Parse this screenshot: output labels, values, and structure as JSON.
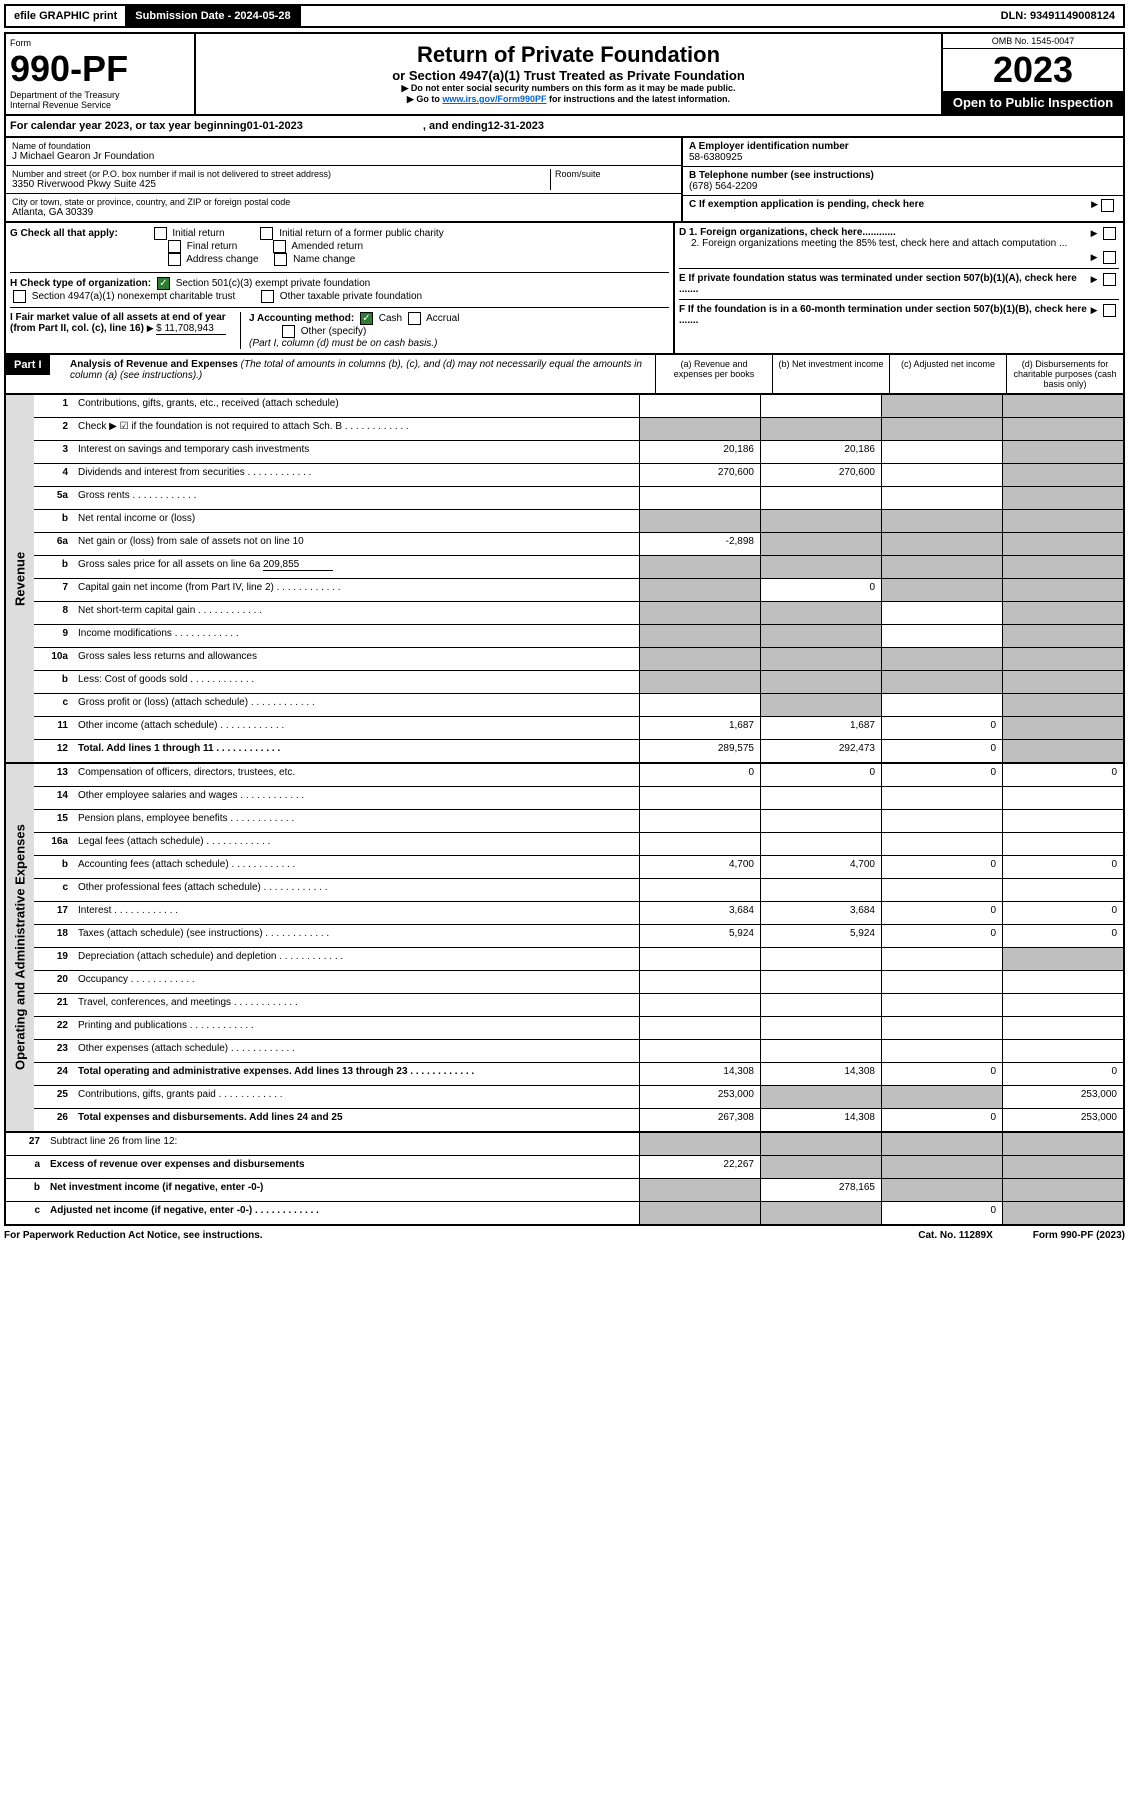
{
  "header": {
    "efile": "efile GRAPHIC print",
    "submission": "Submission Date - 2024-05-28",
    "dln": "DLN: 93491149008124",
    "omb": "OMB No. 1545-0047"
  },
  "form": {
    "label": "Form",
    "number": "990-PF",
    "dept": "Department of the Treasury",
    "irs": "Internal Revenue Service",
    "title": "Return of Private Foundation",
    "subtitle": "or Section 4947(a)(1) Trust Treated as Private Foundation",
    "note1": "▶ Do not enter social security numbers on this form as it may be made public.",
    "note2_pre": "▶ Go to ",
    "note2_link": "www.irs.gov/Form990PF",
    "note2_post": " for instructions and the latest information.",
    "year": "2023",
    "open": "Open to Public Inspection"
  },
  "calyear": {
    "pre": "For calendar year 2023, or tax year beginning ",
    "begin": "01-01-2023",
    "mid": ", and ending ",
    "end": "12-31-2023"
  },
  "entity": {
    "name_lbl": "Name of foundation",
    "name": "J Michael Gearon Jr Foundation",
    "addr_lbl": "Number and street (or P.O. box number if mail is not delivered to street address)",
    "addr": "3350 Riverwood Pkwy Suite 425",
    "room_lbl": "Room/suite",
    "city_lbl": "City or town, state or province, country, and ZIP or foreign postal code",
    "city": "Atlanta, GA  30339",
    "ein_lbl": "A Employer identification number",
    "ein": "58-6380925",
    "phone_lbl": "B Telephone number (see instructions)",
    "phone": "(678) 564-2209",
    "c_lbl": "C If exemption application is pending, check here",
    "d1_lbl": "D 1. Foreign organizations, check here............",
    "d2_lbl": "2. Foreign organizations meeting the 85% test, check here and attach computation ...",
    "e_lbl": "E  If private foundation status was terminated under section 507(b)(1)(A), check here .......",
    "f_lbl": "F  If the foundation is in a 60-month termination under section 507(b)(1)(B), check here .......",
    "g_lbl": "G Check all that apply:",
    "g_opts": [
      "Initial return",
      "Final return",
      "Address change",
      "Initial return of a former public charity",
      "Amended return",
      "Name change"
    ],
    "h_lbl": "H Check type of organization:",
    "h1": "Section 501(c)(3) exempt private foundation",
    "h2": "Section 4947(a)(1) nonexempt charitable trust",
    "h3": "Other taxable private foundation",
    "i_lbl": "I Fair market value of all assets at end of year (from Part II, col. (c), line 16)",
    "i_val": "$  11,708,943",
    "j_lbl": "J Accounting method:",
    "j_cash": "Cash",
    "j_accrual": "Accrual",
    "j_other": "Other (specify)",
    "j_note": "(Part I, column (d) must be on cash basis.)"
  },
  "part1": {
    "label": "Part I",
    "title": "Analysis of Revenue and Expenses",
    "title_note": " (The total of amounts in columns (b), (c), and (d) may not necessarily equal the amounts in column (a) (see instructions).)",
    "cols": [
      "(a)  Revenue and expenses per books",
      "(b)  Net investment income",
      "(c)  Adjusted net income",
      "(d)  Disbursements for charitable purposes (cash basis only)"
    ]
  },
  "side": {
    "rev": "Revenue",
    "exp": "Operating and Administrative Expenses"
  },
  "lines": [
    {
      "n": "1",
      "d": "Contributions, gifts, grants, etc., received (attach schedule)",
      "a": "",
      "b": "",
      "c": "g",
      "dd": "g"
    },
    {
      "n": "2",
      "d": "Check ▶ ☑ if the foundation is not required to attach Sch. B",
      "a": "g",
      "b": "g",
      "c": "g",
      "dd": "g",
      "dotted": 1
    },
    {
      "n": "3",
      "d": "Interest on savings and temporary cash investments",
      "a": "20,186",
      "b": "20,186",
      "c": "",
      "dd": "g"
    },
    {
      "n": "4",
      "d": "Dividends and interest from securities",
      "a": "270,600",
      "b": "270,600",
      "c": "",
      "dd": "g",
      "dotted": 1
    },
    {
      "n": "5a",
      "d": "Gross rents",
      "a": "",
      "b": "",
      "c": "",
      "dd": "g",
      "dotted": 1
    },
    {
      "n": "b",
      "d": "Net rental income or (loss)",
      "a": "g",
      "b": "g",
      "c": "g",
      "dd": "g",
      "inset": 1
    },
    {
      "n": "6a",
      "d": "Net gain or (loss) from sale of assets not on line 10",
      "a": "-2,898",
      "b": "g",
      "c": "g",
      "dd": "g"
    },
    {
      "n": "b",
      "d": "Gross sales price for all assets on line 6a",
      "a": "g",
      "b": "g",
      "c": "g",
      "dd": "g",
      "inset": 1,
      "extra": "209,855"
    },
    {
      "n": "7",
      "d": "Capital gain net income (from Part IV, line 2)",
      "a": "g",
      "b": "0",
      "c": "g",
      "dd": "g",
      "dotted": 1
    },
    {
      "n": "8",
      "d": "Net short-term capital gain",
      "a": "g",
      "b": "g",
      "c": "",
      "dd": "g",
      "dotted": 1
    },
    {
      "n": "9",
      "d": "Income modifications",
      "a": "g",
      "b": "g",
      "c": "",
      "dd": "g",
      "dotted": 1
    },
    {
      "n": "10a",
      "d": "Gross sales less returns and allowances",
      "a": "g",
      "b": "g",
      "c": "g",
      "dd": "g",
      "inset": 1
    },
    {
      "n": "b",
      "d": "Less: Cost of goods sold",
      "a": "g",
      "b": "g",
      "c": "g",
      "dd": "g",
      "inset": 1,
      "dotted": 1
    },
    {
      "n": "c",
      "d": "Gross profit or (loss) (attach schedule)",
      "a": "",
      "b": "g",
      "c": "",
      "dd": "g",
      "dotted": 1
    },
    {
      "n": "11",
      "d": "Other income (attach schedule)",
      "a": "1,687",
      "b": "1,687",
      "c": "0",
      "dd": "g",
      "dotted": 1
    },
    {
      "n": "12",
      "d": "Total. Add lines 1 through 11",
      "a": "289,575",
      "b": "292,473",
      "c": "0",
      "dd": "g",
      "bold": 1,
      "dotted": 1
    }
  ],
  "exp_lines": [
    {
      "n": "13",
      "d": "Compensation of officers, directors, trustees, etc.",
      "a": "0",
      "b": "0",
      "c": "0",
      "dd": "0"
    },
    {
      "n": "14",
      "d": "Other employee salaries and wages",
      "a": "",
      "b": "",
      "c": "",
      "dd": "",
      "dotted": 1
    },
    {
      "n": "15",
      "d": "Pension plans, employee benefits",
      "a": "",
      "b": "",
      "c": "",
      "dd": "",
      "dotted": 1
    },
    {
      "n": "16a",
      "d": "Legal fees (attach schedule)",
      "a": "",
      "b": "",
      "c": "",
      "dd": "",
      "dotted": 1
    },
    {
      "n": "b",
      "d": "Accounting fees (attach schedule)",
      "a": "4,700",
      "b": "4,700",
      "c": "0",
      "dd": "0",
      "dotted": 1
    },
    {
      "n": "c",
      "d": "Other professional fees (attach schedule)",
      "a": "",
      "b": "",
      "c": "",
      "dd": "",
      "dotted": 1
    },
    {
      "n": "17",
      "d": "Interest",
      "a": "3,684",
      "b": "3,684",
      "c": "0",
      "dd": "0",
      "dotted": 1
    },
    {
      "n": "18",
      "d": "Taxes (attach schedule) (see instructions)",
      "a": "5,924",
      "b": "5,924",
      "c": "0",
      "dd": "0",
      "dotted": 1
    },
    {
      "n": "19",
      "d": "Depreciation (attach schedule) and depletion",
      "a": "",
      "b": "",
      "c": "",
      "dd": "g",
      "dotted": 1
    },
    {
      "n": "20",
      "d": "Occupancy",
      "a": "",
      "b": "",
      "c": "",
      "dd": "",
      "dotted": 1
    },
    {
      "n": "21",
      "d": "Travel, conferences, and meetings",
      "a": "",
      "b": "",
      "c": "",
      "dd": "",
      "dotted": 1
    },
    {
      "n": "22",
      "d": "Printing and publications",
      "a": "",
      "b": "",
      "c": "",
      "dd": "",
      "dotted": 1
    },
    {
      "n": "23",
      "d": "Other expenses (attach schedule)",
      "a": "",
      "b": "",
      "c": "",
      "dd": "",
      "dotted": 1
    },
    {
      "n": "24",
      "d": "Total operating and administrative expenses. Add lines 13 through 23",
      "a": "14,308",
      "b": "14,308",
      "c": "0",
      "dd": "0",
      "bold": 1,
      "dotted": 1
    },
    {
      "n": "25",
      "d": "Contributions, gifts, grants paid",
      "a": "253,000",
      "b": "g",
      "c": "g",
      "dd": "253,000",
      "dotted": 1
    },
    {
      "n": "26",
      "d": "Total expenses and disbursements. Add lines 24 and 25",
      "a": "267,308",
      "b": "14,308",
      "c": "0",
      "dd": "253,000",
      "bold": 1
    }
  ],
  "net_lines": [
    {
      "n": "27",
      "d": "Subtract line 26 from line 12:",
      "a": "g",
      "b": "g",
      "c": "g",
      "dd": "g"
    },
    {
      "n": "a",
      "d": "Excess of revenue over expenses and disbursements",
      "a": "22,267",
      "b": "g",
      "c": "g",
      "dd": "g",
      "bold": 1
    },
    {
      "n": "b",
      "d": "Net investment income (if negative, enter -0-)",
      "a": "g",
      "b": "278,165",
      "c": "g",
      "dd": "g",
      "bold": 1
    },
    {
      "n": "c",
      "d": "Adjusted net income (if negative, enter -0-)",
      "a": "g",
      "b": "g",
      "c": "0",
      "dd": "g",
      "bold": 1,
      "dotted": 1
    }
  ],
  "footer": {
    "pra": "For Paperwork Reduction Act Notice, see instructions.",
    "cat": "Cat. No. 11289X",
    "form": "Form 990-PF (2023)"
  }
}
